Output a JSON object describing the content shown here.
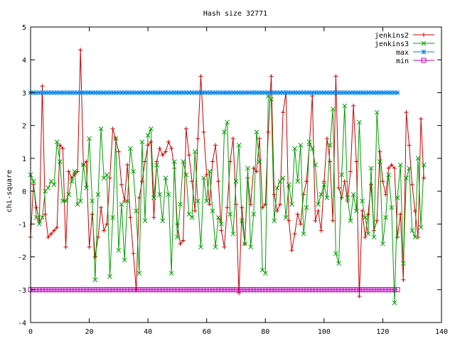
{
  "chart_data": {
    "type": "line",
    "title": "Hash size 32771",
    "xlabel": "",
    "ylabel": "chi-square",
    "xlim": [
      0,
      140
    ],
    "ylim": [
      -4,
      5
    ],
    "x_ticks": [
      0,
      20,
      40,
      60,
      80,
      100,
      120,
      140
    ],
    "y_ticks": [
      -4,
      -3,
      -2,
      -1,
      0,
      1,
      2,
      3,
      4,
      5
    ],
    "grid": false,
    "legend_position": "top-right",
    "series": [
      {
        "name": "jenkins2",
        "color": "#cc0000",
        "marker": "plus",
        "values": [
          -1.4,
          0.2,
          -0.5,
          -0.9,
          3.2,
          -0.7,
          -1.4,
          -1.3,
          -1.2,
          -1.1,
          1.4,
          1.3,
          -1.7,
          0.6,
          0.4,
          0.5,
          0.6,
          4.3,
          0.8,
          0.9,
          -1.7,
          -0.7,
          -2.0,
          -1.4,
          -0.5,
          -1.2,
          -1.0,
          0.4,
          1.9,
          1.6,
          1.2,
          0.2,
          -0.3,
          0.8,
          -0.8,
          -1.9,
          -3.0,
          -0.2,
          0.3,
          0.9,
          1.4,
          1.5,
          -0.8,
          0.9,
          1.3,
          1.1,
          1.2,
          1.5,
          1.3,
          0.7,
          -1.0,
          -1.6,
          -1.5,
          1.9,
          1.1,
          0.3,
          -0.6,
          1.6,
          3.5,
          1.8,
          0.5,
          -0.4,
          0.9,
          1.4,
          0.3,
          -1.2,
          -1.7,
          -0.5,
          0.9,
          1.6,
          -0.4,
          -3.1,
          -0.5,
          -1.6,
          0.4,
          -0.4,
          0.7,
          0.6,
          1.6,
          -0.5,
          -0.4,
          1.8,
          3.5,
          -0.1,
          -0.6,
          -0.4,
          2.4,
          3.0,
          -0.9,
          -1.8,
          -1.3,
          -0.7,
          -1.0,
          -0.1,
          0.3,
          1.4,
          2.9,
          -0.9,
          -0.6,
          -1.2,
          0.3,
          1.6,
          0.9,
          -0.9,
          3.5,
          0.1,
          -0.2,
          0.3,
          -0.3,
          0.6,
          2.6,
          0.9,
          -3.2,
          -0.6,
          -1.4,
          -0.7,
          0.2,
          -1.2,
          -0.9,
          1.2,
          0.3,
          -0.1,
          0.7,
          0.8,
          0.7,
          -1.4,
          -0.7,
          -2.7,
          2.4,
          1.4,
          0.2,
          -0.6,
          -1.4,
          2.2,
          0.4
        ]
      },
      {
        "name": "jenkins3",
        "color": "#00a000",
        "marker": "cross",
        "values": [
          0.5,
          0.3,
          -0.8,
          -1.0,
          -0.8,
          0.0,
          0.1,
          0.3,
          0.2,
          1.5,
          0.9,
          -0.3,
          -0.3,
          -0.1,
          0.3,
          0.6,
          -0.4,
          -0.3,
          0.8,
          0.1,
          1.6,
          -0.3,
          -2.7,
          -0.1,
          1.9,
          0.4,
          0.5,
          -2.6,
          -0.8,
          1.6,
          -1.8,
          -0.4,
          -2.1,
          -0.3,
          1.3,
          0.6,
          -0.6,
          -2.5,
          1.5,
          -0.9,
          1.7,
          1.9,
          -0.2,
          0.8,
          -0.1,
          -0.9,
          0.4,
          -0.1,
          -2.5,
          0.9,
          -1.4,
          -0.4,
          0.9,
          0.5,
          -0.7,
          -0.8,
          1.2,
          -0.3,
          -1.7,
          0.4,
          -0.3,
          0.6,
          -0.6,
          -1.7,
          -0.8,
          -1.0,
          1.8,
          2.1,
          -0.7,
          -1.3,
          0.3,
          1.4,
          -0.9,
          -1.6,
          0.7,
          -1.7,
          -0.7,
          1.8,
          0.9,
          -2.4,
          -2.5,
          2.9,
          2.8,
          -0.9,
          0.1,
          0.3,
          0.4,
          -0.8,
          0.2,
          -0.4,
          1.3,
          0.3,
          1.4,
          -1.3,
          -0.5,
          1.5,
          1.3,
          0.8,
          -0.4,
          -0.1,
          0.2,
          -0.2,
          1.4,
          2.5,
          -1.9,
          -2.2,
          0.5,
          2.6,
          -0.2,
          -0.9,
          -0.1,
          -0.6,
          2.1,
          -0.3,
          -0.8,
          -1.3,
          0.7,
          -1.4,
          2.4,
          0.9,
          -1.6,
          -0.8,
          0.5,
          -0.5,
          -3.4,
          -0.2,
          0.8,
          -2.2,
          0.4,
          0.7,
          -1.2,
          -1.4,
          1.0,
          -1.1,
          0.8
        ]
      },
      {
        "name": "max",
        "color": "#0080e0",
        "marker": "star",
        "values": [
          3,
          3,
          3,
          3,
          3,
          3,
          3,
          3,
          3,
          3,
          3,
          3,
          3,
          3,
          3,
          3,
          3,
          3,
          3,
          3,
          3,
          3,
          3,
          3,
          3,
          3,
          3,
          3,
          3,
          3,
          3,
          3,
          3,
          3,
          3,
          3,
          3,
          3,
          3,
          3,
          3,
          3,
          3,
          3,
          3,
          3,
          3,
          3,
          3,
          3,
          3,
          3,
          3,
          3,
          3,
          3,
          3,
          3,
          3,
          3,
          3,
          3,
          3,
          3,
          3,
          3,
          3,
          3,
          3,
          3,
          3,
          3,
          3,
          3,
          3,
          3,
          3,
          3,
          3,
          3,
          3,
          3,
          3,
          3,
          3,
          3,
          3,
          3,
          3,
          3,
          3,
          3,
          3,
          3,
          3,
          3,
          3,
          3,
          3,
          3,
          3,
          3,
          3,
          3,
          3,
          3,
          3,
          3,
          3,
          3,
          3,
          3,
          3,
          3,
          3,
          3,
          3,
          3,
          3,
          3,
          3,
          3,
          3,
          3,
          3,
          3
        ]
      },
      {
        "name": "min",
        "color": "#c000c0",
        "marker": "square",
        "values": [
          -3,
          -3,
          -3,
          -3,
          -3,
          -3,
          -3,
          -3,
          -3,
          -3,
          -3,
          -3,
          -3,
          -3,
          -3,
          -3,
          -3,
          -3,
          -3,
          -3,
          -3,
          -3,
          -3,
          -3,
          -3,
          -3,
          -3,
          -3,
          -3,
          -3,
          -3,
          -3,
          -3,
          -3,
          -3,
          -3,
          -3,
          -3,
          -3,
          -3,
          -3,
          -3,
          -3,
          -3,
          -3,
          -3,
          -3,
          -3,
          -3,
          -3,
          -3,
          -3,
          -3,
          -3,
          -3,
          -3,
          -3,
          -3,
          -3,
          -3,
          -3,
          -3,
          -3,
          -3,
          -3,
          -3,
          -3,
          -3,
          -3,
          -3,
          -3,
          -3,
          -3,
          -3,
          -3,
          -3,
          -3,
          -3,
          -3,
          -3,
          -3,
          -3,
          -3,
          -3,
          -3,
          -3,
          -3,
          -3,
          -3,
          -3,
          -3,
          -3,
          -3,
          -3,
          -3,
          -3,
          -3,
          -3,
          -3,
          -3,
          -3,
          -3,
          -3,
          -3,
          -3,
          -3,
          -3,
          -3,
          -3,
          -3,
          -3,
          -3,
          -3,
          -3,
          -3,
          -3,
          -3,
          -3,
          -3,
          -3,
          -3,
          -3,
          -3,
          -3,
          -3,
          -3
        ]
      }
    ]
  }
}
